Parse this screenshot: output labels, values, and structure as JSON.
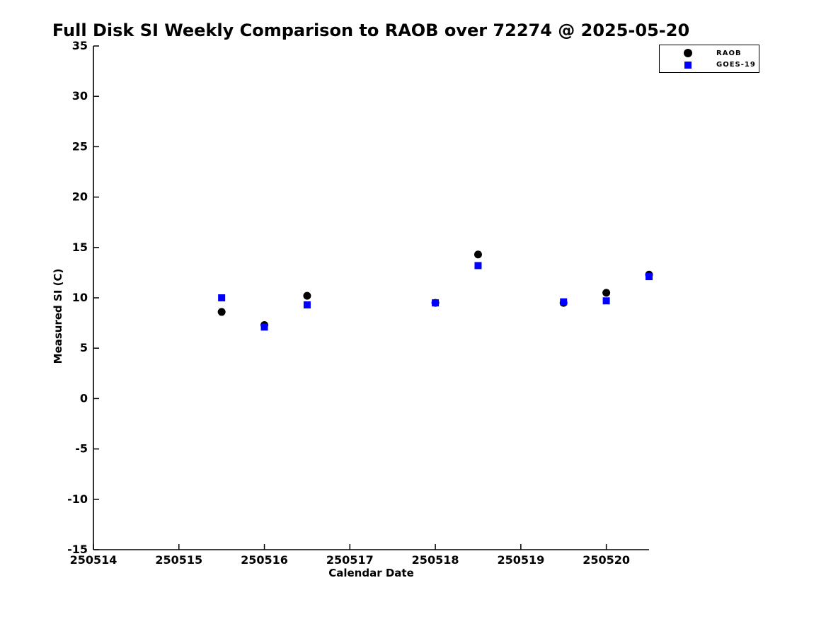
{
  "title": "Full Disk SI Weekly Comparison to RAOB over 72274 @ 2025-05-20",
  "chart_data": {
    "type": "scatter",
    "title": "Full Disk SI Weekly Comparison to RAOB over 72274 @ 2025-05-20",
    "xlabel": "Calendar Date",
    "ylabel": "Measured SI (C)",
    "xlim": [
      250514,
      250520.5
    ],
    "ylim": [
      -15,
      35
    ],
    "x_ticks": [
      250514,
      250515,
      250516,
      250517,
      250518,
      250519,
      250520
    ],
    "y_ticks": [
      35,
      30,
      25,
      20,
      15,
      10,
      5,
      0,
      -5,
      -10,
      -15
    ],
    "grid": false,
    "legend_position": "top-right",
    "series": [
      {
        "name": "RAOB",
        "marker": "circle",
        "color": "#000000",
        "points": [
          [
            250515.5,
            8.6
          ],
          [
            250516.0,
            7.3
          ],
          [
            250516.5,
            10.2
          ],
          [
            250518.0,
            9.5
          ],
          [
            250518.5,
            14.3
          ],
          [
            250519.5,
            9.5
          ],
          [
            250520.0,
            10.5
          ],
          [
            250520.5,
            12.3
          ]
        ]
      },
      {
        "name": "GOES-19",
        "marker": "square",
        "color": "#0000ff",
        "points": [
          [
            250515.5,
            10.0
          ],
          [
            250516.0,
            7.1
          ],
          [
            250516.5,
            9.3
          ],
          [
            250518.0,
            9.5
          ],
          [
            250518.5,
            13.2
          ],
          [
            250519.5,
            9.6
          ],
          [
            250520.0,
            9.7
          ],
          [
            250520.5,
            12.1
          ]
        ]
      }
    ]
  }
}
